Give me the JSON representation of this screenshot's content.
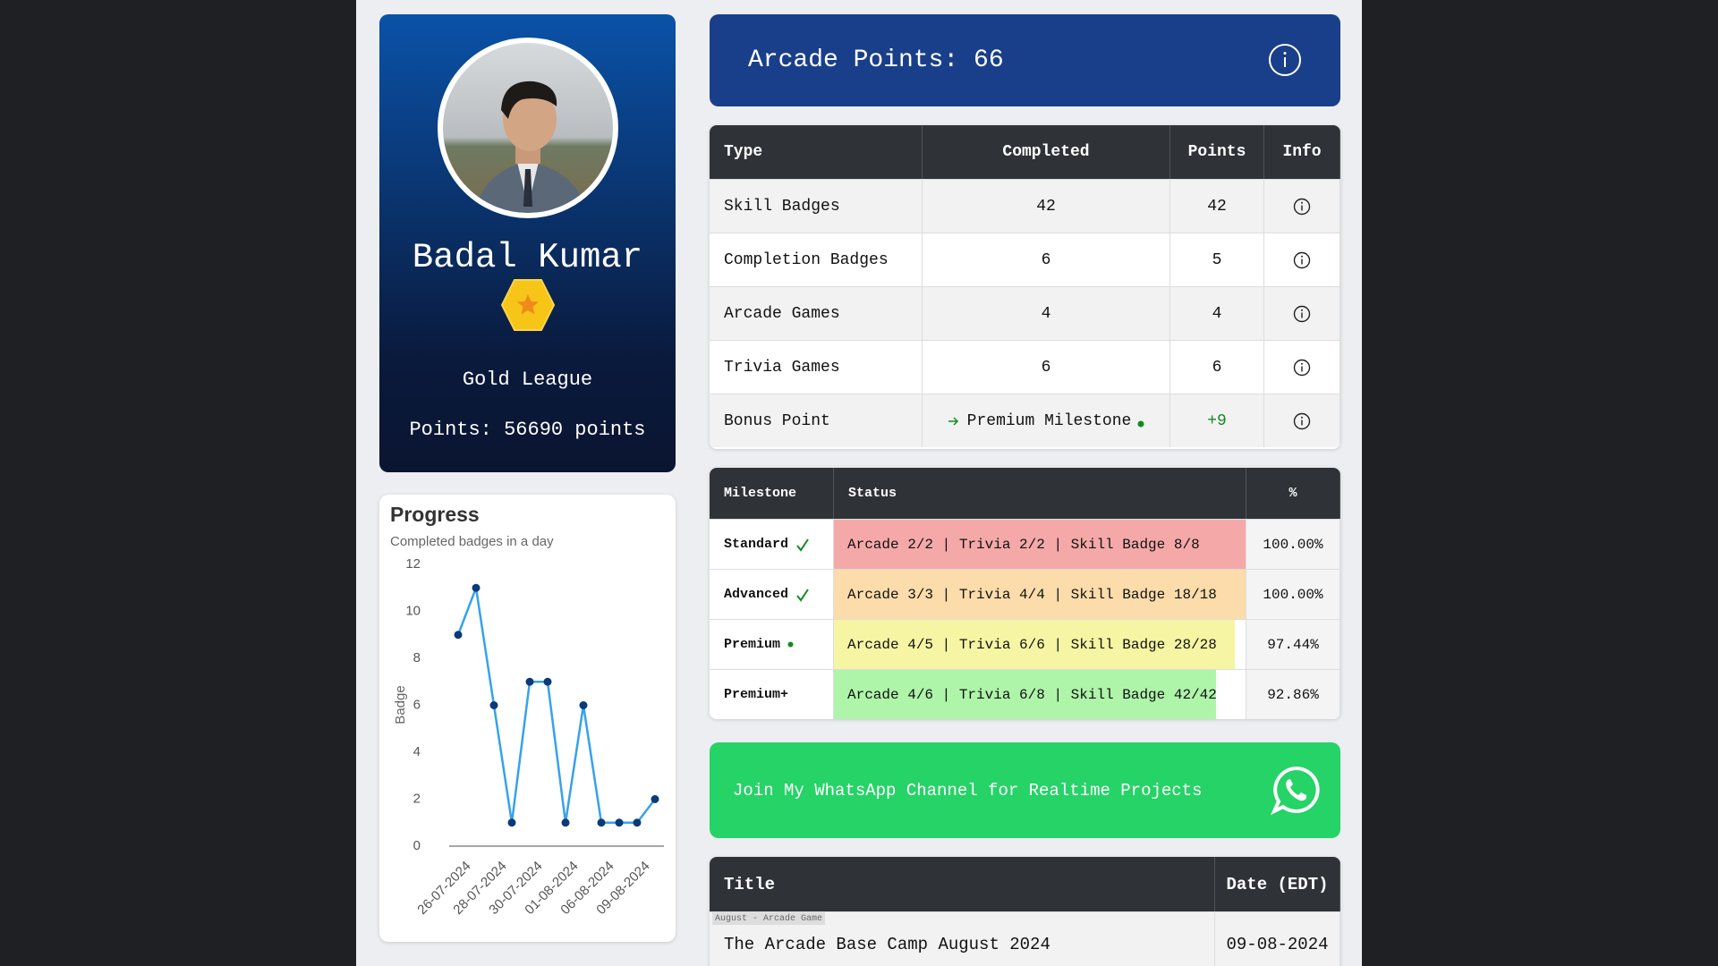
{
  "profile": {
    "name": "Badal Kumar",
    "league": "Gold League",
    "points": "Points: 56690 points"
  },
  "arcade_banner": {
    "text": "Arcade Points: 66"
  },
  "points_table": {
    "headers": [
      "Type",
      "Completed",
      "Points",
      "Info"
    ],
    "rows": [
      [
        "Skill Badges",
        42,
        42
      ],
      [
        "Completion Badges",
        6,
        5
      ],
      [
        "Arcade Games",
        4,
        4
      ],
      [
        "Trivia Games",
        6,
        6
      ],
      [
        "Bonus Point",
        "Premium Milestone",
        "+9"
      ]
    ]
  },
  "milestones": {
    "headers": [
      "Milestone",
      "Status",
      "%"
    ],
    "rows": [
      {
        "name": "Standard",
        "status": "Arcade 2/2 | Trivia 2/2 | Skill Badge 8/8",
        "percent": 100,
        "percent_label": "100.00%",
        "color": "#f4a9a8"
      },
      {
        "name": "Advanced",
        "status": "Arcade 3/3 | Trivia 4/4 | Skill Badge 18/18",
        "percent": 100,
        "percent_label": "100.00%",
        "color": "#fcdcaa"
      },
      {
        "name": "Premium",
        "status": "Arcade 4/5 | Trivia 6/6 | Skill Badge 28/28",
        "percent": 97.44,
        "percent_label": "97.44%",
        "color": "#f5f5a3"
      },
      {
        "name": "Premium+",
        "status": "Arcade 4/6 | Trivia 6/8 | Skill Badge 42/42",
        "percent": 92.86,
        "percent_label": "92.86%",
        "color": "#aef5aa"
      }
    ]
  },
  "whatsapp": {
    "text": "Join My WhatsApp Channel for Realtime Projects"
  },
  "events": {
    "headers": [
      "Title",
      "Date (EDT)"
    ],
    "rows": [
      {
        "tag": "August - Arcade Game",
        "title": "The Arcade Base Camp August 2024",
        "date": "09-08-2024"
      }
    ]
  },
  "chart_data": {
    "type": "line",
    "title": "Progress",
    "subtitle": "Completed badges in a day",
    "y_label": "Badge",
    "categories": [
      "26-07-2024",
      null,
      "28-07-2024",
      null,
      "30-07-2024",
      null,
      "01-08-2024",
      null,
      "06-08-2024",
      null,
      "09-08-2024",
      null
    ],
    "values": [
      9,
      11,
      6,
      1,
      7,
      7,
      1,
      6,
      1,
      1,
      1,
      2
    ],
    "color": "#36a2eb",
    "point_color": "#0b3a78",
    "ylim": [
      0,
      12
    ],
    "yticks": [
      0,
      2,
      4,
      6,
      8,
      10,
      12
    ],
    "grid": false
  }
}
